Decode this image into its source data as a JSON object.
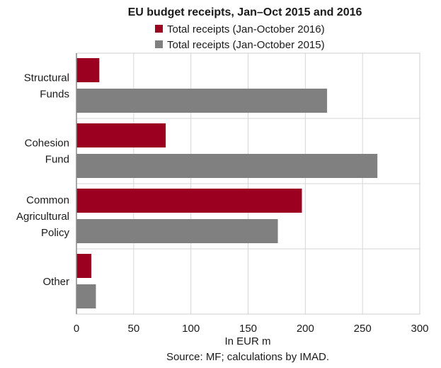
{
  "chart_data": {
    "type": "bar",
    "orientation": "horizontal",
    "title": "EU budget receipts, Jan–Oct 2015 and 2016",
    "xlabel": "In EUR m",
    "source": "Source: MF; calculations by IMAD.",
    "categories": [
      [
        "Structural",
        "Funds"
      ],
      [
        "Cohesion",
        "Fund"
      ],
      [
        "Common",
        "Agricultural",
        "Policy"
      ],
      [
        "Other"
      ]
    ],
    "series": [
      {
        "name": "Total receipts (Jan-October 2016)",
        "color": "#9b0020",
        "values": [
          20,
          78,
          197,
          13
        ]
      },
      {
        "name": "Total receipts (Jan-October 2015)",
        "color": "#808080",
        "values": [
          219,
          263,
          176,
          17
        ]
      }
    ],
    "xlim": [
      0,
      300
    ],
    "xticks": [
      0,
      50,
      100,
      150,
      200,
      250,
      300
    ],
    "grid": true,
    "legend_position": "top"
  }
}
